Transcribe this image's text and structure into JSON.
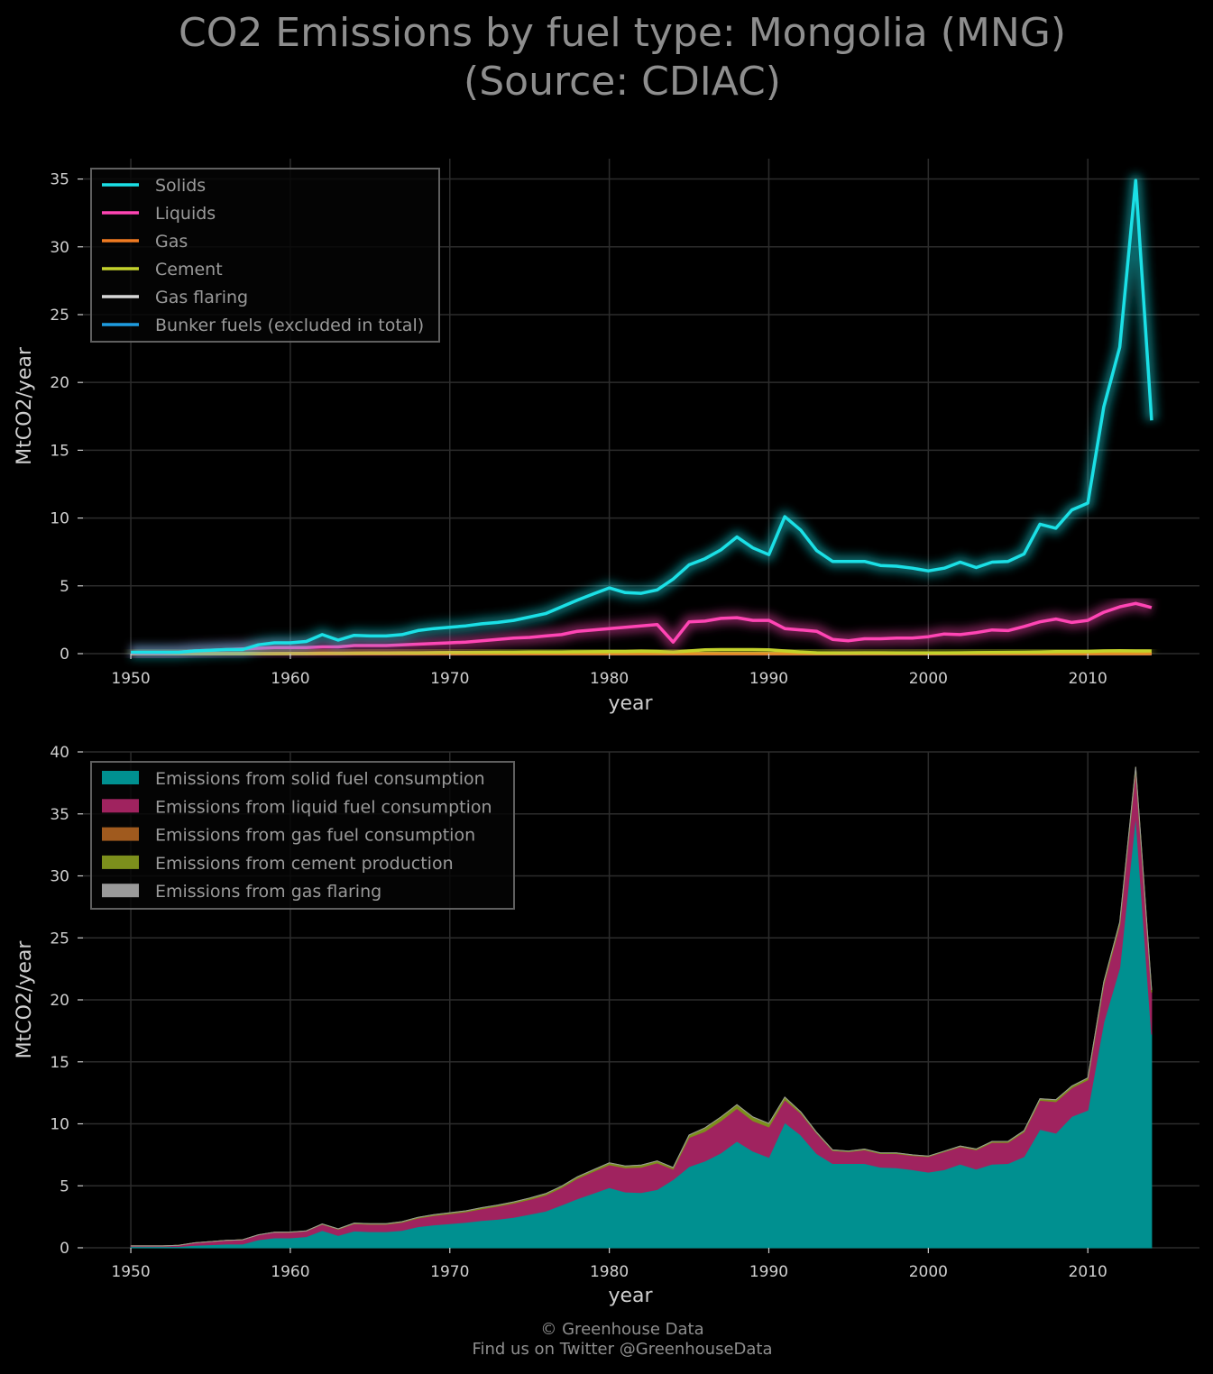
{
  "title": {
    "line1": "CO2 Emissions by fuel type: Mongolia (MNG)",
    "line2": "(Source: CDIAC)"
  },
  "footer": {
    "line1": "© Greenhouse Data",
    "line2": "Find us on Twitter @GreenhouseData"
  },
  "colors": {
    "solids": "#1be0e6",
    "liquids": "#ff45b4",
    "gas": "#f07b22",
    "cement": "#c3d22c",
    "flaring": "#d8d8d8",
    "bunker": "#1e9ce0",
    "solid_area": "#009090",
    "liquid_area": "#a0235f",
    "gas_area": "#a05a1e",
    "cement_area": "#7c8f1c",
    "flaring_area": "#9a9a9a"
  },
  "chart_data": [
    {
      "type": "line",
      "xlabel": "year",
      "ylabel": "MtCO2/year",
      "xlim": [
        1947,
        2017
      ],
      "ylim": [
        0,
        36.5
      ],
      "xticks": [
        1950,
        1960,
        1970,
        1980,
        1990,
        2000,
        2010
      ],
      "yticks": [
        0,
        5,
        10,
        15,
        20,
        25,
        30,
        35
      ],
      "grid": true,
      "legend_position": "top-left",
      "x": [
        1950,
        1951,
        1952,
        1953,
        1954,
        1955,
        1956,
        1957,
        1958,
        1959,
        1960,
        1961,
        1962,
        1963,
        1964,
        1965,
        1966,
        1967,
        1968,
        1969,
        1970,
        1971,
        1972,
        1973,
        1974,
        1975,
        1976,
        1977,
        1978,
        1979,
        1980,
        1981,
        1982,
        1983,
        1984,
        1985,
        1986,
        1987,
        1988,
        1989,
        1990,
        1991,
        1992,
        1993,
        1994,
        1995,
        1996,
        1997,
        1998,
        1999,
        2000,
        2001,
        2002,
        2003,
        2004,
        2005,
        2006,
        2007,
        2008,
        2009,
        2010,
        2011,
        2012,
        2013,
        2014
      ],
      "series": [
        {
          "name": "Solids",
          "key": "solids",
          "values": [
            0.1,
            0.1,
            0.1,
            0.1,
            0.2,
            0.25,
            0.3,
            0.3,
            0.65,
            0.8,
            0.8,
            0.9,
            1.4,
            1.0,
            1.35,
            1.3,
            1.3,
            1.4,
            1.7,
            1.85,
            1.95,
            2.05,
            2.2,
            2.3,
            2.45,
            2.7,
            2.95,
            3.45,
            3.95,
            4.4,
            4.85,
            4.5,
            4.45,
            4.7,
            5.5,
            6.55,
            7.0,
            7.65,
            8.6,
            7.8,
            7.3,
            10.1,
            9.1,
            7.6,
            6.8,
            6.8,
            6.8,
            6.5,
            6.45,
            6.3,
            6.1,
            6.3,
            6.75,
            6.35,
            6.75,
            6.8,
            7.35,
            9.55,
            9.25,
            10.6,
            11.1,
            18.2,
            22.6,
            34.9,
            17.2
          ]
        },
        {
          "name": "Liquids",
          "key": "liquids",
          "values": [
            0.05,
            0.05,
            0.05,
            0.1,
            0.2,
            0.25,
            0.3,
            0.35,
            0.4,
            0.45,
            0.45,
            0.45,
            0.5,
            0.5,
            0.6,
            0.6,
            0.6,
            0.65,
            0.7,
            0.75,
            0.8,
            0.85,
            0.95,
            1.05,
            1.15,
            1.2,
            1.3,
            1.4,
            1.65,
            1.75,
            1.85,
            1.95,
            2.05,
            2.15,
            0.85,
            2.35,
            2.4,
            2.6,
            2.65,
            2.45,
            2.45,
            1.85,
            1.75,
            1.65,
            1.05,
            0.95,
            1.1,
            1.1,
            1.15,
            1.15,
            1.25,
            1.45,
            1.4,
            1.55,
            1.75,
            1.7,
            2.0,
            2.35,
            2.55,
            2.3,
            2.45,
            3.05,
            3.45,
            3.7,
            3.4
          ]
        },
        {
          "name": "Gas",
          "key": "gas",
          "values": [
            0,
            0,
            0,
            0,
            0,
            0,
            0,
            0,
            0,
            0,
            0,
            0,
            0,
            0,
            0,
            0,
            0,
            0,
            0,
            0,
            0,
            0,
            0,
            0,
            0,
            0,
            0,
            0,
            0,
            0,
            0,
            0,
            0,
            0,
            0,
            0,
            0,
            0,
            0,
            0,
            0,
            0,
            0,
            0,
            0,
            0,
            0,
            0,
            0,
            0,
            0,
            0,
            0,
            0,
            0,
            0,
            0,
            0,
            0,
            0,
            0,
            0,
            0,
            0,
            0
          ]
        },
        {
          "name": "Cement",
          "key": "cement",
          "values": [
            0,
            0,
            0,
            0,
            0,
            0,
            0,
            0,
            0,
            0,
            0.02,
            0.02,
            0.03,
            0.03,
            0.04,
            0.05,
            0.05,
            0.06,
            0.06,
            0.07,
            0.08,
            0.08,
            0.09,
            0.1,
            0.1,
            0.11,
            0.12,
            0.12,
            0.13,
            0.14,
            0.15,
            0.15,
            0.18,
            0.16,
            0.12,
            0.2,
            0.28,
            0.3,
            0.3,
            0.3,
            0.28,
            0.2,
            0.12,
            0.06,
            0.05,
            0.05,
            0.06,
            0.06,
            0.05,
            0.05,
            0.05,
            0.05,
            0.06,
            0.07,
            0.08,
            0.09,
            0.1,
            0.12,
            0.15,
            0.15,
            0.15,
            0.2,
            0.22,
            0.2,
            0.2
          ]
        },
        {
          "name": "Gas flaring",
          "key": "flaring",
          "values": [
            0,
            0,
            0,
            0,
            0,
            0,
            0,
            0,
            0,
            0,
            0,
            0,
            0,
            0,
            0,
            0,
            0,
            0,
            0,
            0,
            0,
            0,
            0,
            0,
            0,
            0,
            0,
            0,
            0,
            0,
            0,
            0,
            0,
            0,
            0,
            0,
            0,
            0,
            0,
            0,
            0,
            0,
            0,
            0,
            0,
            0,
            0,
            0,
            0,
            0,
            0,
            0,
            0,
            0,
            0,
            0,
            0,
            0,
            0,
            0,
            0,
            0,
            0,
            0,
            0
          ]
        },
        {
          "name": "Bunker fuels (excluded in total)",
          "key": "bunker",
          "values": [
            0,
            0,
            0,
            0,
            0,
            0,
            0,
            0,
            0,
            0,
            0,
            0,
            0,
            0,
            0,
            0,
            0,
            0,
            0,
            0,
            0,
            0,
            0,
            0,
            0,
            0,
            0,
            0,
            0,
            0,
            0,
            0,
            0,
            0,
            0,
            0,
            0,
            0,
            0,
            0,
            0,
            0,
            0,
            0,
            0,
            0,
            0,
            0,
            0,
            0,
            0,
            0,
            0,
            0,
            0,
            0,
            0,
            0,
            0,
            0,
            0,
            0,
            0,
            0,
            0
          ]
        }
      ]
    },
    {
      "type": "area",
      "stacked": true,
      "xlabel": "year",
      "ylabel": "MtCO2/year",
      "xlim": [
        1947,
        2017
      ],
      "ylim": [
        0,
        40
      ],
      "xticks": [
        1950,
        1960,
        1970,
        1980,
        1990,
        2000,
        2010
      ],
      "yticks": [
        0,
        5,
        10,
        15,
        20,
        25,
        30,
        35,
        40
      ],
      "grid": true,
      "legend_position": "top-left",
      "series": [
        {
          "name": "Emissions from solid fuel consumption",
          "key": "solid_area",
          "source": "solids"
        },
        {
          "name": "Emissions from liquid fuel consumption",
          "key": "liquid_area",
          "source": "liquids"
        },
        {
          "name": "Emissions from gas fuel consumption",
          "key": "gas_area",
          "source": "gas"
        },
        {
          "name": "Emissions from cement production",
          "key": "cement_area",
          "source": "cement"
        },
        {
          "name": "Emissions from gas flaring",
          "key": "flaring_area",
          "source": "flaring"
        }
      ]
    }
  ]
}
